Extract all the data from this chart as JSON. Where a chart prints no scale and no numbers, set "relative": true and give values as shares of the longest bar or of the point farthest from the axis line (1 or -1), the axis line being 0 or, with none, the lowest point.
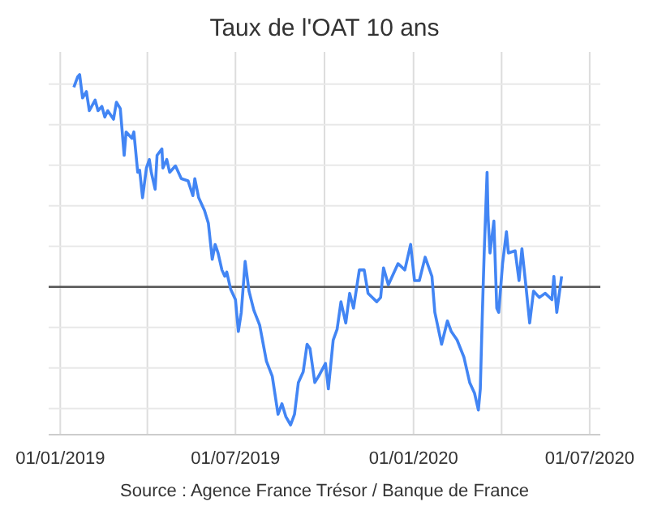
{
  "chart_data": {
    "type": "line",
    "title": "Taux de l'OAT 10 ans",
    "annotations": [
      "Source : Agence France Trésor / Banque de France"
    ],
    "relative": true,
    "grid": true,
    "marker": "none",
    "line_style": "solid",
    "xlim": [
      "2018-12-20",
      "2020-07-12"
    ],
    "xticks": [
      {
        "value": "2019-01-01",
        "label": "01/01/2019"
      },
      {
        "value": "2019-04-01",
        "label": null
      },
      {
        "value": "2019-07-01",
        "label": "01/07/2019"
      },
      {
        "value": "2019-10-01",
        "label": null
      },
      {
        "value": "2020-01-01",
        "label": "01/01/2020"
      },
      {
        "value": "2020-04-01",
        "label": null
      },
      {
        "value": "2020-07-01",
        "label": "01/07/2020"
      }
    ],
    "x": [
      "2019-01-15",
      "2019-01-19",
      "2019-01-21",
      "2019-01-24",
      "2019-01-28",
      "2019-01-31",
      "2019-02-06",
      "2019-02-09",
      "2019-02-13",
      "2019-02-16",
      "2019-02-19",
      "2019-02-25",
      "2019-02-28",
      "2019-03-04",
      "2019-03-08",
      "2019-03-10",
      "2019-03-16",
      "2019-03-18",
      "2019-03-22",
      "2019-03-24",
      "2019-03-27",
      "2019-03-31",
      "2019-04-03",
      "2019-04-05",
      "2019-04-09",
      "2019-04-11",
      "2019-04-16",
      "2019-04-17",
      "2019-04-21",
      "2019-04-24",
      "2019-04-30",
      "2019-05-06",
      "2019-05-13",
      "2019-05-18",
      "2019-05-20",
      "2019-05-24",
      "2019-05-30",
      "2019-06-03",
      "2019-06-07",
      "2019-06-10",
      "2019-06-13",
      "2019-06-17",
      "2019-06-20",
      "2019-06-22",
      "2019-06-26",
      "2019-07-01",
      "2019-07-04",
      "2019-07-07",
      "2019-07-11",
      "2019-07-15",
      "2019-07-20",
      "2019-07-26",
      "2019-08-02",
      "2019-08-08",
      "2019-08-09",
      "2019-08-14",
      "2019-08-18",
      "2019-08-22",
      "2019-08-27",
      "2019-08-31",
      "2019-09-04",
      "2019-09-09",
      "2019-09-13",
      "2019-09-16",
      "2019-09-21",
      "2019-09-25",
      "2019-10-02",
      "2019-10-05",
      "2019-10-10",
      "2019-10-14",
      "2019-10-18",
      "2019-10-23",
      "2019-10-27",
      "2019-10-31",
      "2019-11-06",
      "2019-11-11",
      "2019-11-15",
      "2019-11-24",
      "2019-11-28",
      "2019-12-01",
      "2019-12-06",
      "2019-12-10",
      "2019-12-16",
      "2019-12-23",
      "2019-12-29",
      "2020-01-02",
      "2020-01-07",
      "2020-01-13",
      "2020-01-20",
      "2020-01-23",
      "2020-01-30",
      "2020-02-05",
      "2020-02-09",
      "2020-02-15",
      "2020-02-22",
      "2020-02-28",
      "2020-03-04",
      "2020-03-08",
      "2020-03-10",
      "2020-03-12",
      "2020-03-14",
      "2020-03-17",
      "2020-03-18",
      "2020-03-20",
      "2020-03-24",
      "2020-03-27",
      "2020-03-29",
      "2020-04-02",
      "2020-04-06",
      "2020-04-08",
      "2020-04-15",
      "2020-04-19",
      "2020-04-22",
      "2020-04-26",
      "2020-04-30",
      "2020-05-04",
      "2020-05-10",
      "2020-05-16",
      "2020-05-23",
      "2020-05-25",
      "2020-05-28",
      "2020-06-02"
    ],
    "series": [
      {
        "color": "#4285f4",
        "values": [
          0.94,
          0.99,
          1,
          0.89,
          0.92,
          0.83,
          0.88,
          0.83,
          0.85,
          0.8,
          0.83,
          0.79,
          0.87,
          0.84,
          0.62,
          0.73,
          0.7,
          0.73,
          0.54,
          0.55,
          0.42,
          0.56,
          0.6,
          0.54,
          0.46,
          0.62,
          0.65,
          0.56,
          0.6,
          0.54,
          0.57,
          0.51,
          0.5,
          0.43,
          0.51,
          0.42,
          0.36,
          0.3,
          0.13,
          0.2,
          0.16,
          0.08,
          0.05,
          0.07,
          -0.01,
          -0.06,
          -0.21,
          -0.12,
          0.12,
          -0.02,
          -0.11,
          -0.18,
          -0.35,
          -0.42,
          -0.45,
          -0.6,
          -0.55,
          -0.61,
          -0.65,
          -0.6,
          -0.45,
          -0.4,
          -0.27,
          -0.29,
          -0.45,
          -0.42,
          -0.36,
          -0.48,
          -0.25,
          -0.2,
          -0.07,
          -0.17,
          -0.03,
          -0.1,
          0.08,
          0.08,
          -0.03,
          -0.07,
          -0.05,
          0.09,
          0.01,
          0.05,
          0.11,
          0.08,
          0.2,
          0.03,
          0.03,
          0.14,
          0.05,
          -0.12,
          -0.27,
          -0.16,
          -0.21,
          -0.25,
          -0.33,
          -0.45,
          -0.5,
          -0.58,
          -0.48,
          -0.14,
          0.16,
          0.54,
          0.33,
          0.16,
          0.31,
          -0.1,
          -0.12,
          0.11,
          0.26,
          0.16,
          0.17,
          0.03,
          0.18,
          0.01,
          -0.17,
          -0.02,
          -0.05,
          -0.03,
          -0.06,
          0.05,
          -0.12,
          0.05
        ]
      }
    ]
  }
}
